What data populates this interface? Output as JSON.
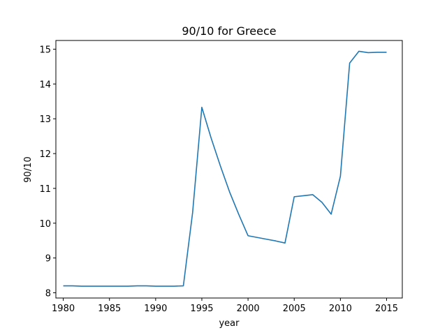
{
  "chart_data": {
    "type": "line",
    "title": "90/10 for Greece",
    "xlabel": "year",
    "ylabel": "90/10",
    "xlim": [
      1979.2,
      2016.7
    ],
    "ylim": [
      7.85,
      15.25
    ],
    "xticks": [
      1980,
      1985,
      1990,
      1995,
      2000,
      2005,
      2010,
      2015
    ],
    "yticks": [
      8,
      9,
      10,
      11,
      12,
      13,
      14,
      15
    ],
    "grid": false,
    "legend": "none",
    "series": [
      {
        "color": "#1f77b4",
        "x": [
          1980,
          1981,
          1982,
          1983,
          1984,
          1985,
          1986,
          1987,
          1988,
          1989,
          1990,
          1991,
          1992,
          1993,
          1994,
          1995,
          1996,
          1997,
          1998,
          1999,
          2000,
          2001,
          2002,
          2003,
          2004,
          2005,
          2006,
          2007,
          2008,
          2009,
          2010,
          2011,
          2012,
          2013,
          2014,
          2015
        ],
        "y": [
          8.2,
          8.2,
          8.19,
          8.19,
          8.19,
          8.19,
          8.19,
          8.19,
          8.2,
          8.2,
          8.19,
          8.19,
          8.19,
          8.2,
          10.3,
          13.33,
          12.45,
          11.65,
          10.9,
          10.25,
          9.64,
          9.59,
          9.54,
          9.49,
          9.43,
          10.76,
          10.79,
          10.82,
          10.6,
          10.26,
          11.35,
          14.6,
          14.94,
          14.9,
          14.91,
          14.91
        ]
      }
    ]
  }
}
